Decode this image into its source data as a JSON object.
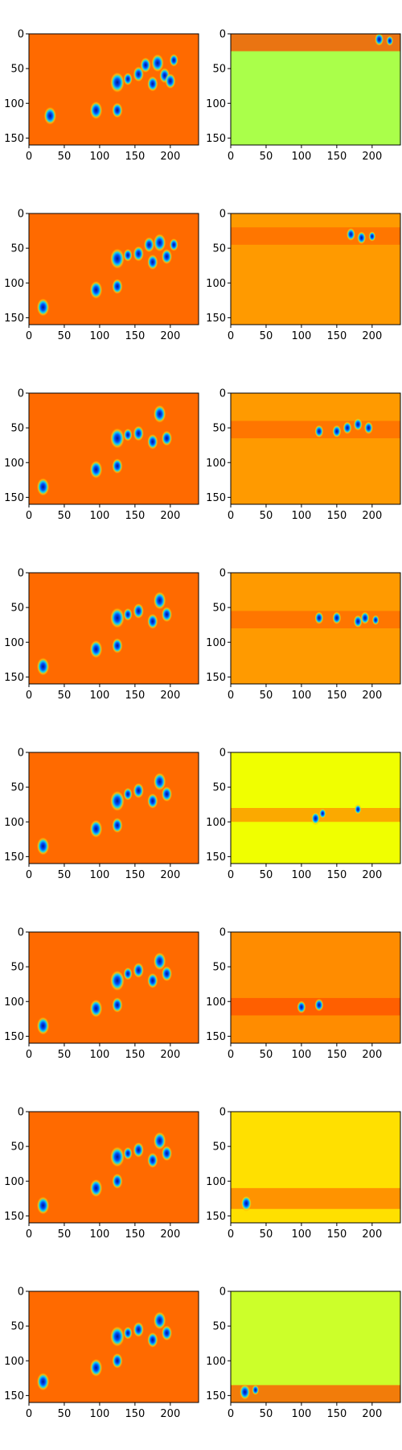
{
  "chart_data": {
    "type": "heatmap",
    "rows": 8,
    "cols": 2,
    "colormap": "jet",
    "axes": {
      "xlim": [
        0,
        240
      ],
      "ylim": [
        160,
        0
      ],
      "x_ticks": [
        0,
        50,
        100,
        150,
        200
      ],
      "y_ticks": [
        0,
        50,
        100,
        150
      ],
      "x_tick_labels": [
        "0",
        "50",
        "100",
        "150",
        "200"
      ],
      "y_tick_labels": [
        "0",
        "50",
        "100",
        "150"
      ]
    },
    "panels": [
      {
        "row": 0,
        "col": 0,
        "background": "#ff6a00",
        "blobs": [
          {
            "x": 30,
            "y": 118,
            "r": 7
          },
          {
            "x": 95,
            "y": 110,
            "r": 7
          },
          {
            "x": 125,
            "y": 110,
            "r": 6
          },
          {
            "x": 125,
            "y": 70,
            "r": 8
          },
          {
            "x": 140,
            "y": 65,
            "r": 5
          },
          {
            "x": 155,
            "y": 58,
            "r": 6
          },
          {
            "x": 165,
            "y": 45,
            "r": 6
          },
          {
            "x": 175,
            "y": 72,
            "r": 6
          },
          {
            "x": 182,
            "y": 42,
            "r": 7
          },
          {
            "x": 192,
            "y": 60,
            "r": 6
          },
          {
            "x": 200,
            "y": 68,
            "r": 6
          },
          {
            "x": 205,
            "y": 38,
            "r": 5
          }
        ]
      },
      {
        "row": 0,
        "col": 1,
        "background": "#aaff4a",
        "band": {
          "y0": 0,
          "y1": 25,
          "color": "#ff4500"
        },
        "blobs": [
          {
            "x": 210,
            "y": 8,
            "r": 5
          },
          {
            "x": 225,
            "y": 10,
            "r": 4
          }
        ]
      },
      {
        "row": 1,
        "col": 0,
        "background": "#ff6a00",
        "blobs": [
          {
            "x": 20,
            "y": 135,
            "r": 7
          },
          {
            "x": 95,
            "y": 110,
            "r": 7
          },
          {
            "x": 125,
            "y": 105,
            "r": 6
          },
          {
            "x": 125,
            "y": 65,
            "r": 8
          },
          {
            "x": 140,
            "y": 60,
            "r": 5
          },
          {
            "x": 155,
            "y": 58,
            "r": 6
          },
          {
            "x": 170,
            "y": 45,
            "r": 6
          },
          {
            "x": 175,
            "y": 70,
            "r": 6
          },
          {
            "x": 185,
            "y": 42,
            "r": 7
          },
          {
            "x": 195,
            "y": 62,
            "r": 6
          },
          {
            "x": 205,
            "y": 45,
            "r": 5
          }
        ]
      },
      {
        "row": 1,
        "col": 1,
        "background": "#ff9a00",
        "band": {
          "y0": 20,
          "y1": 45,
          "color": "#ff6a00"
        },
        "blobs": [
          {
            "x": 170,
            "y": 30,
            "r": 5
          },
          {
            "x": 185,
            "y": 35,
            "r": 5
          },
          {
            "x": 200,
            "y": 33,
            "r": 4
          }
        ]
      },
      {
        "row": 2,
        "col": 0,
        "background": "#ff6a00",
        "blobs": [
          {
            "x": 20,
            "y": 135,
            "r": 7
          },
          {
            "x": 95,
            "y": 110,
            "r": 7
          },
          {
            "x": 125,
            "y": 105,
            "r": 6
          },
          {
            "x": 125,
            "y": 65,
            "r": 8
          },
          {
            "x": 140,
            "y": 60,
            "r": 5
          },
          {
            "x": 155,
            "y": 58,
            "r": 6
          },
          {
            "x": 175,
            "y": 70,
            "r": 6
          },
          {
            "x": 185,
            "y": 30,
            "r": 7
          },
          {
            "x": 195,
            "y": 65,
            "r": 6
          }
        ]
      },
      {
        "row": 2,
        "col": 1,
        "background": "#ff9a00",
        "band": {
          "y0": 40,
          "y1": 65,
          "color": "#ff6a00"
        },
        "blobs": [
          {
            "x": 125,
            "y": 55,
            "r": 5
          },
          {
            "x": 150,
            "y": 55,
            "r": 5
          },
          {
            "x": 165,
            "y": 50,
            "r": 5
          },
          {
            "x": 180,
            "y": 45,
            "r": 5
          },
          {
            "x": 195,
            "y": 50,
            "r": 5
          }
        ]
      },
      {
        "row": 3,
        "col": 0,
        "background": "#ff6a00",
        "blobs": [
          {
            "x": 20,
            "y": 135,
            "r": 7
          },
          {
            "x": 95,
            "y": 110,
            "r": 7
          },
          {
            "x": 125,
            "y": 105,
            "r": 6
          },
          {
            "x": 125,
            "y": 65,
            "r": 8
          },
          {
            "x": 140,
            "y": 60,
            "r": 5
          },
          {
            "x": 155,
            "y": 55,
            "r": 6
          },
          {
            "x": 175,
            "y": 70,
            "r": 6
          },
          {
            "x": 185,
            "y": 40,
            "r": 7
          },
          {
            "x": 195,
            "y": 60,
            "r": 6
          }
        ]
      },
      {
        "row": 3,
        "col": 1,
        "background": "#ff9a00",
        "band": {
          "y0": 55,
          "y1": 80,
          "color": "#ff6a00"
        },
        "blobs": [
          {
            "x": 125,
            "y": 65,
            "r": 5
          },
          {
            "x": 150,
            "y": 65,
            "r": 5
          },
          {
            "x": 180,
            "y": 70,
            "r": 5
          },
          {
            "x": 190,
            "y": 65,
            "r": 5
          },
          {
            "x": 205,
            "y": 68,
            "r": 4
          }
        ]
      },
      {
        "row": 4,
        "col": 0,
        "background": "#ff6a00",
        "blobs": [
          {
            "x": 20,
            "y": 135,
            "r": 7
          },
          {
            "x": 95,
            "y": 110,
            "r": 7
          },
          {
            "x": 125,
            "y": 105,
            "r": 6
          },
          {
            "x": 125,
            "y": 70,
            "r": 8
          },
          {
            "x": 140,
            "y": 60,
            "r": 5
          },
          {
            "x": 155,
            "y": 55,
            "r": 6
          },
          {
            "x": 175,
            "y": 70,
            "r": 6
          },
          {
            "x": 185,
            "y": 42,
            "r": 7
          },
          {
            "x": 195,
            "y": 60,
            "r": 6
          }
        ]
      },
      {
        "row": 4,
        "col": 1,
        "background": "#f0ff00",
        "band": {
          "y0": 80,
          "y1": 100,
          "color": "#ff8c00"
        },
        "blobs": [
          {
            "x": 120,
            "y": 95,
            "r": 5
          },
          {
            "x": 130,
            "y": 88,
            "r": 4
          },
          {
            "x": 180,
            "y": 82,
            "r": 4
          }
        ]
      },
      {
        "row": 5,
        "col": 0,
        "background": "#ff6a00",
        "blobs": [
          {
            "x": 20,
            "y": 135,
            "r": 7
          },
          {
            "x": 95,
            "y": 110,
            "r": 7
          },
          {
            "x": 125,
            "y": 105,
            "r": 6
          },
          {
            "x": 125,
            "y": 70,
            "r": 8
          },
          {
            "x": 140,
            "y": 60,
            "r": 5
          },
          {
            "x": 155,
            "y": 55,
            "r": 6
          },
          {
            "x": 175,
            "y": 70,
            "r": 6
          },
          {
            "x": 185,
            "y": 42,
            "r": 7
          },
          {
            "x": 195,
            "y": 60,
            "r": 6
          }
        ]
      },
      {
        "row": 5,
        "col": 1,
        "background": "#ff8c00",
        "band": {
          "y0": 95,
          "y1": 120,
          "color": "#ff5000"
        },
        "blobs": [
          {
            "x": 100,
            "y": 108,
            "r": 5
          },
          {
            "x": 125,
            "y": 105,
            "r": 5
          }
        ]
      },
      {
        "row": 6,
        "col": 0,
        "background": "#ff6a00",
        "blobs": [
          {
            "x": 20,
            "y": 135,
            "r": 7
          },
          {
            "x": 95,
            "y": 110,
            "r": 7
          },
          {
            "x": 125,
            "y": 100,
            "r": 6
          },
          {
            "x": 125,
            "y": 65,
            "r": 8
          },
          {
            "x": 140,
            "y": 60,
            "r": 5
          },
          {
            "x": 155,
            "y": 55,
            "r": 6
          },
          {
            "x": 175,
            "y": 70,
            "r": 6
          },
          {
            "x": 185,
            "y": 42,
            "r": 7
          },
          {
            "x": 195,
            "y": 60,
            "r": 6
          }
        ]
      },
      {
        "row": 6,
        "col": 1,
        "background": "#ffe000",
        "band": {
          "y0": 110,
          "y1": 140,
          "color": "#ff7a00"
        },
        "blobs": [
          {
            "x": 22,
            "y": 132,
            "r": 6
          }
        ]
      },
      {
        "row": 7,
        "col": 0,
        "background": "#ff6a00",
        "blobs": [
          {
            "x": 20,
            "y": 130,
            "r": 7
          },
          {
            "x": 95,
            "y": 110,
            "r": 7
          },
          {
            "x": 125,
            "y": 100,
            "r": 6
          },
          {
            "x": 125,
            "y": 65,
            "r": 8
          },
          {
            "x": 140,
            "y": 60,
            "r": 5
          },
          {
            "x": 155,
            "y": 55,
            "r": 6
          },
          {
            "x": 175,
            "y": 70,
            "r": 6
          },
          {
            "x": 185,
            "y": 42,
            "r": 7
          },
          {
            "x": 195,
            "y": 60,
            "r": 6
          }
        ]
      },
      {
        "row": 7,
        "col": 1,
        "background": "#ccff2a",
        "band": {
          "y0": 135,
          "y1": 160,
          "color": "#ff5000"
        },
        "blobs": [
          {
            "x": 20,
            "y": 145,
            "r": 6
          },
          {
            "x": 35,
            "y": 142,
            "r": 4
          }
        ]
      }
    ]
  }
}
